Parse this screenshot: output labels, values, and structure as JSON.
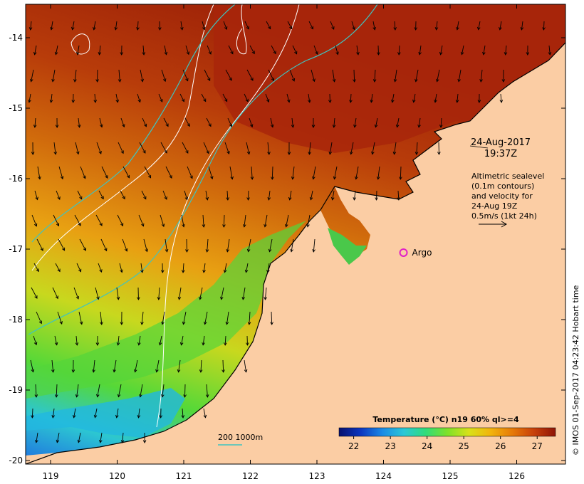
{
  "map": {
    "lon_range": [
      118.6,
      126.7
    ],
    "lat_range": [
      -20.1,
      -13.6
    ],
    "x_ticks": [
      119,
      120,
      121,
      122,
      123,
      124,
      125,
      126
    ],
    "y_ticks": [
      -14,
      -15,
      -16,
      -17,
      -18,
      -19,
      -20
    ],
    "x_tick_labels": [
      "119",
      "120",
      "121",
      "122",
      "123",
      "124",
      "125",
      "126"
    ],
    "y_tick_labels": [
      "-14",
      "-15",
      "-16",
      "-17",
      "-18",
      "-19",
      "-20"
    ],
    "land_color": "#fbcda4",
    "sea_warm_color": "#b22a08",
    "sea_cool_color": "#2d6fd6"
  },
  "annotations": {
    "date": "24-Aug-2017",
    "time": "19:37Z",
    "legend_line1": "Altimetric sealevel",
    "legend_line2": "(0.1m contours)",
    "legend_line3": "and velocity for",
    "legend_line4": "24-Aug 19Z",
    "legend_line5": "0.5m/s (1kt 24h)",
    "argo_label": "Argo",
    "argo_lon": 124.3,
    "argo_lat": -17.05,
    "depth_legend": "200  1000m",
    "credit": "© IMOS 01-Sep-2017 04:23:42 Hobart time"
  },
  "colorbar": {
    "title": "Temperature (°C) n19 60% ql>=4",
    "tick_labels": [
      "22",
      "23",
      "24",
      "25",
      "26",
      "27"
    ],
    "range": [
      21.6,
      27.5
    ],
    "colors": [
      "#08106e",
      "#0c36c0",
      "#1a8ae6",
      "#2ac8d6",
      "#2fdc7a",
      "#7ee12a",
      "#d8e11a",
      "#f2b40c",
      "#e67a08",
      "#c8400a",
      "#8e1406"
    ]
  }
}
